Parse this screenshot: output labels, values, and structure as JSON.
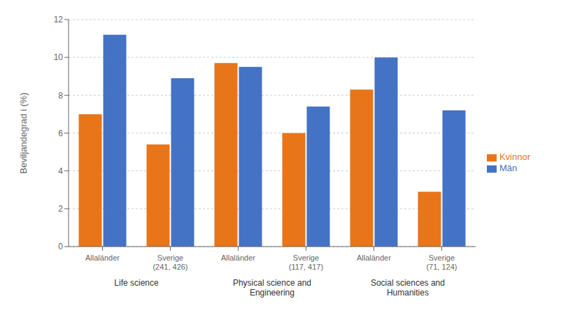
{
  "chart_data": {
    "type": "bar",
    "categories": [
      "Allaländer",
      "Sverige\n(241, 426)",
      "Allaländer",
      "Sverige\n(117, 417)",
      "Allaländer",
      "Sverige\n(71, 124)"
    ],
    "series": [
      {
        "name": "Kvinnor",
        "color": "#E8751A",
        "values": [
          7.0,
          5.4,
          9.7,
          6.0,
          8.3,
          2.9
        ]
      },
      {
        "name": "Män",
        "color": "#4472C4",
        "values": [
          11.2,
          8.9,
          9.5,
          7.4,
          10.0,
          7.2
        ]
      }
    ],
    "ylabel": "Beviljandegrad i (%)",
    "ylim": [
      0,
      12
    ],
    "yticks": [
      0,
      2,
      4,
      6,
      8,
      10,
      12
    ],
    "grid": true,
    "legend": "right",
    "annotations": [
      "Life science",
      "Physical science and\nEngineering",
      "Social sciences and\nHumanities"
    ]
  }
}
